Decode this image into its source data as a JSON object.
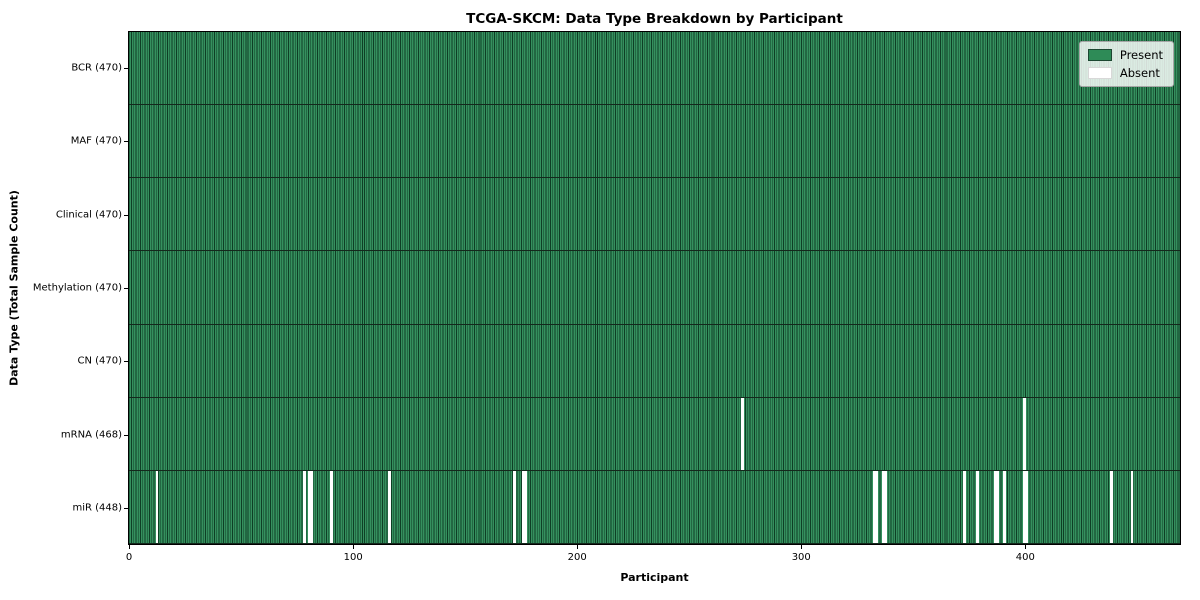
{
  "title": "TCGA-SKCM: Data Type Breakdown by Participant",
  "xlabel": "Participant",
  "ylabel": "Data Type (Total Sample Count)",
  "legend": {
    "present_label": "Present",
    "absent_label": "Absent"
  },
  "colors": {
    "present": "#2e8b57",
    "present_edge": "#0e3e25",
    "absent": "#ffffff",
    "spine": "#000000"
  },
  "chart_data": {
    "type": "heatmap",
    "title": "TCGA-SKCM: Data Type Breakdown by Participant",
    "xlabel": "Participant",
    "ylabel": "Data Type (Total Sample Count)",
    "legend_entries": [
      "Present",
      "Absent"
    ],
    "legend_position": "upper right",
    "n_participants": 470,
    "x_range": [
      0,
      470
    ],
    "x_ticks": [
      0,
      100,
      200,
      300,
      400
    ],
    "rows": [
      {
        "label": "BCR (470)",
        "data_type": "BCR",
        "present_count": 470,
        "absent_participants": []
      },
      {
        "label": "MAF (470)",
        "data_type": "MAF",
        "present_count": 470,
        "absent_participants": []
      },
      {
        "label": "Clinical (470)",
        "data_type": "Clinical",
        "present_count": 470,
        "absent_participants": []
      },
      {
        "label": "Methylation (470)",
        "data_type": "Methylation",
        "present_count": 470,
        "absent_participants": []
      },
      {
        "label": "CN (470)",
        "data_type": "CN",
        "present_count": 470,
        "absent_participants": []
      },
      {
        "label": "mRNA (468)",
        "data_type": "mRNA",
        "present_count": 468,
        "absent_participants": [
          274,
          400
        ]
      },
      {
        "label": "miR (448)",
        "data_type": "miR",
        "present_count": 448,
        "absent_participants": [
          12,
          78,
          80,
          81,
          90,
          116,
          172,
          176,
          177,
          333,
          334,
          337,
          338,
          373,
          379,
          387,
          388,
          391,
          400,
          401,
          439,
          448
        ]
      }
    ]
  }
}
